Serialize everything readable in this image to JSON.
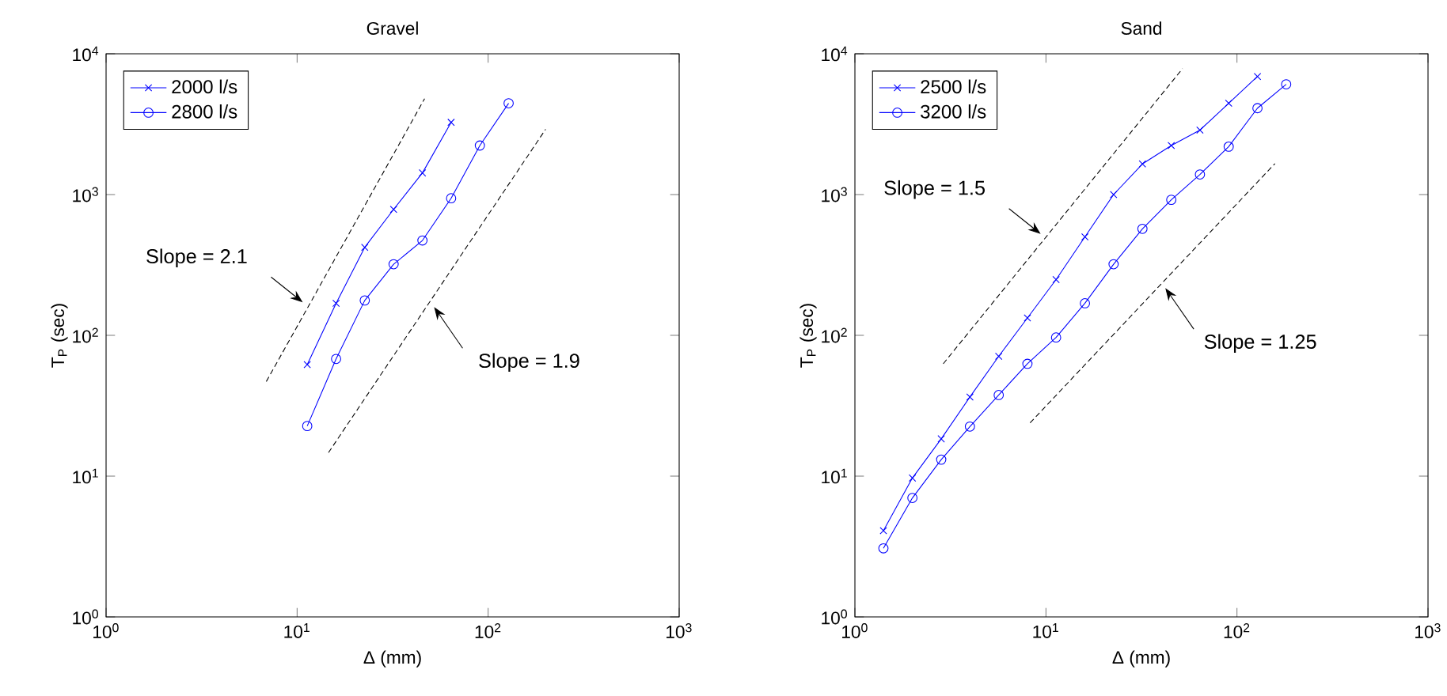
{
  "chart_data": [
    {
      "type": "line",
      "title": "Gravel",
      "xlabel": "Δ (mm)",
      "ylabel": "T$_{P}$ (sec)",
      "log": "xy",
      "xlim": [
        1,
        1000
      ],
      "ylim": [
        1,
        10000
      ],
      "xticks": [
        {
          "value": 1,
          "label": "10$^{0}$"
        },
        {
          "value": 10,
          "label": "10$^{1}$"
        },
        {
          "value": 100,
          "label": "10$^{2}$"
        },
        {
          "value": 1000,
          "label": "10$^{3}$"
        }
      ],
      "yticks": [
        {
          "value": 1,
          "label": "10$^{0}$"
        },
        {
          "value": 10,
          "label": "10$^{1}$"
        },
        {
          "value": 100,
          "label": "10$^{2}$"
        },
        {
          "value": 1000,
          "label": "10$^{3}$"
        },
        {
          "value": 10000,
          "label": "10$^{4}$"
        }
      ],
      "legend": "top left",
      "series": [
        {
          "name": "2000 l/s",
          "color": "#0000ff",
          "marker": "cross",
          "line_style": "solid",
          "x": [
            11.3,
            16,
            22.6,
            32,
            45.3,
            64
          ],
          "values": [
            62,
            169,
            422,
            785,
            1425,
            3260
          ]
        },
        {
          "name": "2800 l/s",
          "color": "#0000ff",
          "marker": "circle",
          "line_style": "solid",
          "x": [
            11.3,
            16,
            22.6,
            32,
            45.3,
            64,
            90.5,
            128
          ],
          "values": [
            22.7,
            68,
            177,
            320,
            472,
            941,
            2230,
            4450
          ]
        },
        {
          "type": "line",
          "color": "#000000",
          "marker": "none",
          "line_style": "dashed",
          "x": [
            6.9,
            46.5
          ],
          "values": [
            47,
            4800
          ]
        },
        {
          "type": "line",
          "color": "#000000",
          "marker": "none",
          "line_style": "dashed",
          "x": [
            14.6,
            200
          ],
          "values": [
            14.7,
            2910
          ]
        }
      ],
      "annotations": [
        "Slope = 2.1",
        "Slope = 1.9"
      ]
    },
    {
      "type": "line",
      "title": "Sand",
      "xlabel": "Δ (mm)",
      "ylabel": "T$_{P}$ (sec)",
      "log": "xy",
      "xlim": [
        1,
        1000
      ],
      "ylim": [
        1,
        10000
      ],
      "xticks": [
        {
          "value": 1,
          "label": "10$^{0}$"
        },
        {
          "value": 10,
          "label": "10$^{1}$"
        },
        {
          "value": 100,
          "label": "10$^{2}$"
        },
        {
          "value": 1000,
          "label": "10$^{3}$"
        }
      ],
      "yticks": [
        {
          "value": 1,
          "label": "10$^{0}$"
        },
        {
          "value": 10,
          "label": "10$^{1}$"
        },
        {
          "value": 100,
          "label": "10$^{2}$"
        },
        {
          "value": 1000,
          "label": "10$^{3}$"
        },
        {
          "value": 10000,
          "label": "10$^{4}$"
        }
      ],
      "legend": "top left",
      "series": [
        {
          "name": "2500 l/s",
          "color": "#0000ff",
          "marker": "cross",
          "line_style": "solid",
          "x": [
            1.41,
            2,
            2.83,
            4,
            5.66,
            8,
            11.3,
            16,
            22.6,
            32,
            45.3,
            64,
            90.5,
            128
          ],
          "values": [
            4.1,
            9.7,
            18.4,
            36.5,
            71,
            133,
            249,
            501,
            1000,
            1650,
            2230,
            2870,
            4450,
            6900
          ]
        },
        {
          "name": "3200 l/s",
          "color": "#0000ff",
          "marker": "circle",
          "line_style": "solid",
          "x": [
            1.41,
            2,
            2.83,
            4,
            5.66,
            8,
            11.3,
            16,
            22.6,
            32,
            45.3,
            64,
            90.5,
            128,
            181
          ],
          "values": [
            3.07,
            7.0,
            13.1,
            22.5,
            37.7,
            62.8,
            96.6,
            169,
            320,
            571,
            918,
            1390,
            2190,
            4110,
            6070
          ]
        },
        {
          "type": "line",
          "color": "#000000",
          "marker": "none",
          "line_style": "dashed",
          "x": [
            2.9,
            51.9
          ],
          "values": [
            62.8,
            7850
          ]
        },
        {
          "type": "line",
          "color": "#000000",
          "marker": "none",
          "line_style": "dashed",
          "x": [
            8.26,
            158
          ],
          "values": [
            23.9,
            1660
          ]
        }
      ],
      "annotations": [
        "Slope = 1.5",
        "Slope = 1.25"
      ]
    }
  ]
}
